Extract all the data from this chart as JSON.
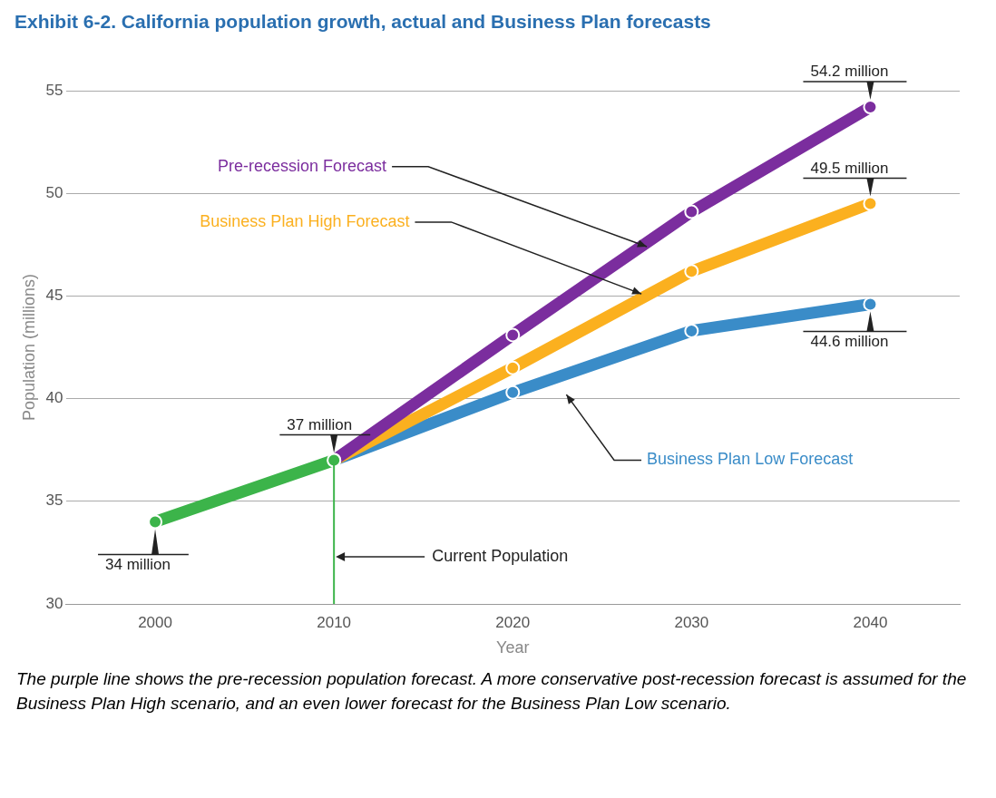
{
  "chart_data": {
    "type": "line",
    "title": "Exhibit 6-2. California population growth, actual and Business Plan forecasts",
    "xlabel": "Year",
    "ylabel": "Population (millions)",
    "categories": [
      "2000",
      "2010",
      "2020",
      "2030",
      "2040"
    ],
    "series": [
      {
        "color": "#3cb44a",
        "values": [
          34,
          37,
          null,
          null,
          null
        ],
        "value_labels": [
          "34 million",
          "37 million",
          null,
          null,
          null
        ]
      },
      {
        "name": "Pre-recession Forecast",
        "color": "#7b2d9e",
        "values": [
          null,
          37,
          43.1,
          49.1,
          54.2
        ],
        "value_labels": [
          null,
          null,
          null,
          null,
          "54.2 million"
        ]
      },
      {
        "name": "Business Plan High Forecast",
        "color": "#fbb01f",
        "values": [
          null,
          37,
          41.5,
          46.2,
          49.5
        ],
        "value_labels": [
          null,
          null,
          null,
          null,
          "49.5 million"
        ]
      },
      {
        "name": "Business Plan Low Forecast",
        "color": "#3a8cc8",
        "values": [
          null,
          37,
          40.3,
          43.3,
          44.6
        ],
        "value_labels": [
          null,
          null,
          null,
          null,
          "44.6 million"
        ]
      }
    ],
    "ylim": [
      30,
      55
    ],
    "yticks": [
      30,
      35,
      40,
      45,
      50,
      55
    ],
    "grid": "y",
    "legend": false,
    "marker": "circle",
    "ref_lines": [
      {
        "axis": "x",
        "value": "2010",
        "label": "Current Population",
        "color": "#3cb44a"
      }
    ],
    "annotations": [
      "The purple line shows the pre-recession population forecast. A more conservative post-recession forecast is assumed for the Business Plan High scenario, and an even lower forecast for the Business Plan Low scenario."
    ]
  }
}
